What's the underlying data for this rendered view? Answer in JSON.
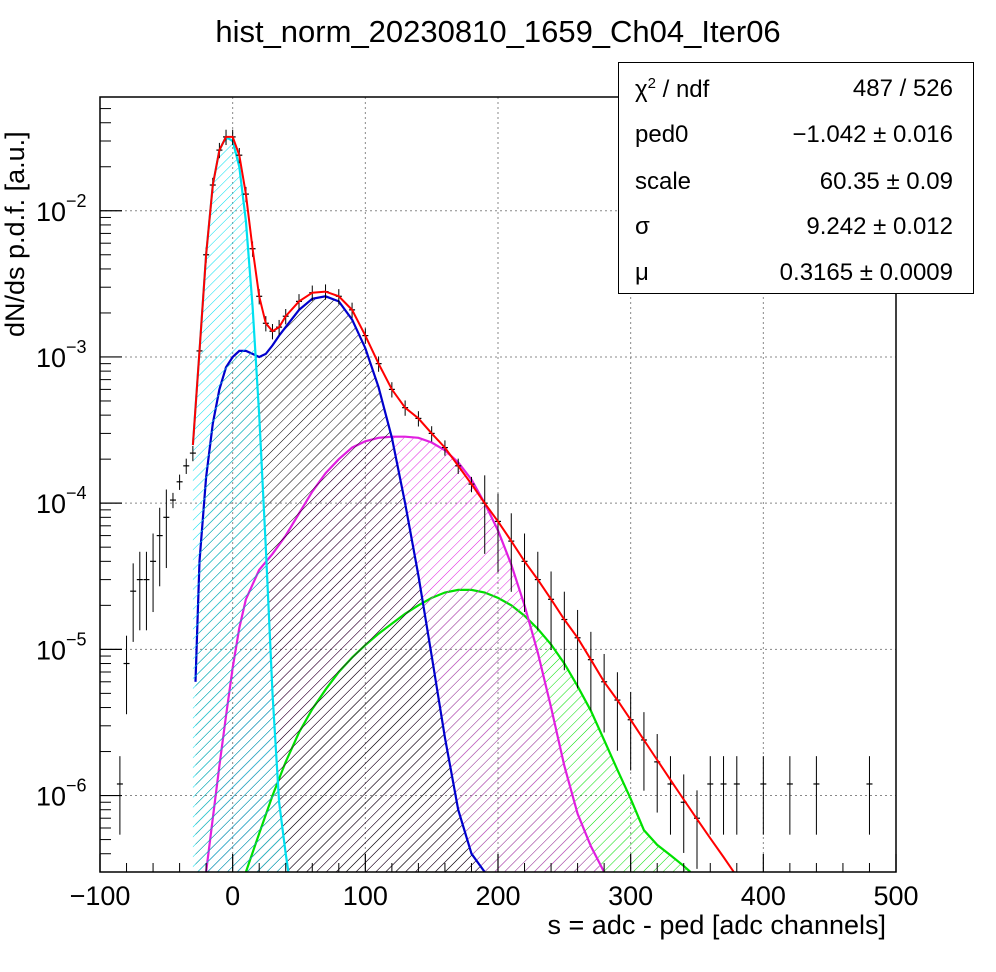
{
  "chart_data": {
    "type": "line",
    "title": "hist_norm_20230810_1659_Ch04_Iter06",
    "xlabel": "s = adc - ped [adc channels]",
    "ylabel": "dN/ds p.d.f. [a.u.]",
    "xlim": [
      -100,
      500
    ],
    "ylim": [
      3e-07,
      0.06
    ],
    "yscale": "log",
    "grid": true,
    "x_ticks": [
      -100,
      0,
      100,
      200,
      300,
      400,
      500
    ],
    "x_tick_labels": [
      "−100",
      "0",
      "100",
      "200",
      "300",
      "400",
      "500"
    ],
    "y_ticks": [
      1e-06,
      1e-05,
      0.0001,
      0.001,
      0.01
    ],
    "y_tick_labels": [
      {
        "base": "10",
        "exp": "−6"
      },
      {
        "base": "10",
        "exp": "−5"
      },
      {
        "base": "10",
        "exp": "−4"
      },
      {
        "base": "10",
        "exp": "−3"
      },
      {
        "base": "10",
        "exp": "−2"
      }
    ],
    "series": [
      {
        "color": "#000000",
        "style": "histogram-errorbars",
        "x": [
          -85,
          -80,
          -75,
          -70,
          -65,
          -60,
          -55,
          -50,
          -45,
          -40,
          -35,
          -30,
          -25,
          -20,
          -15,
          -10,
          -5,
          0,
          5,
          10,
          15,
          20,
          25,
          30,
          35,
          40,
          50,
          60,
          70,
          80,
          90,
          100,
          110,
          120,
          130,
          140,
          150,
          160,
          170,
          180,
          190,
          200,
          210,
          220,
          230,
          240,
          250,
          260,
          270,
          280,
          290,
          300,
          310,
          320,
          330,
          340,
          350,
          360,
          370,
          380,
          400,
          420,
          440,
          480
        ],
        "y": [
          1.2e-06,
          8e-06,
          2.5e-05,
          3e-05,
          3e-05,
          4e-05,
          6e-05,
          8e-05,
          0.000105,
          0.00014,
          0.00018,
          0.00022,
          0.0011,
          0.005,
          0.015,
          0.026,
          0.032,
          0.032,
          0.024,
          0.013,
          0.0055,
          0.0026,
          0.0017,
          0.0015,
          0.0016,
          0.0019,
          0.0024,
          0.00275,
          0.0028,
          0.0026,
          0.0021,
          0.0014,
          0.0009,
          0.0006,
          0.00045,
          0.00038,
          0.0003,
          0.00024,
          0.00018,
          0.000135,
          0.0001,
          7.5e-05,
          5.5e-05,
          4e-05,
          3e-05,
          2.2e-05,
          1.6e-05,
          1.2e-05,
          8.5e-06,
          6e-06,
          4.5e-06,
          3.3e-06,
          2.4e-06,
          1.7e-06,
          1.2e-06,
          9e-07,
          7e-07,
          1.2e-06,
          1.2e-06,
          1.2e-06,
          1.2e-06,
          1.2e-06,
          1.2e-06,
          1.2e-06
        ]
      },
      {
        "color": "#ff0000",
        "style": "line",
        "x": [
          -30,
          -25,
          -20,
          -15,
          -10,
          -5,
          0,
          5,
          10,
          15,
          20,
          25,
          30,
          35,
          40,
          50,
          60,
          70,
          80,
          90,
          100,
          110,
          120,
          130,
          140,
          150,
          160,
          170,
          180,
          190,
          200,
          210,
          220,
          230,
          240,
          250,
          260,
          270,
          280,
          290,
          300,
          310,
          320,
          330,
          340,
          350,
          360,
          370,
          380
        ],
        "y": [
          0.00025,
          0.0011,
          0.005,
          0.015,
          0.026,
          0.032,
          0.032,
          0.024,
          0.013,
          0.0055,
          0.0026,
          0.0017,
          0.0015,
          0.0016,
          0.0019,
          0.0024,
          0.00275,
          0.0028,
          0.0026,
          0.0021,
          0.0014,
          0.0009,
          0.0006,
          0.00045,
          0.00038,
          0.0003,
          0.00024,
          0.00018,
          0.000135,
          0.0001,
          7.5e-05,
          5.5e-05,
          4e-05,
          3e-05,
          2.2e-05,
          1.6e-05,
          1.2e-05,
          8.5e-06,
          6e-06,
          4.5e-06,
          3.3e-06,
          2.4e-06,
          1.75e-06,
          1.28e-06,
          9.4e-07,
          6.9e-07,
          5.1e-07,
          3.8e-07,
          2.8e-07
        ]
      },
      {
        "color": "#00e0f0",
        "style": "hatched-fill",
        "x": [
          -30,
          -25,
          -20,
          -15,
          -10,
          -5,
          0,
          5,
          10,
          15,
          20,
          25,
          30,
          35,
          40,
          42
        ],
        "y": [
          0.00025,
          0.0011,
          0.005,
          0.015,
          0.026,
          0.032,
          0.03,
          0.02,
          0.0085,
          0.0022,
          0.0004,
          5e-05,
          5e-06,
          9e-07,
          4e-07,
          3e-07
        ]
      },
      {
        "color": "#0000cc",
        "style": "hatched-fill",
        "x": [
          -28,
          -25,
          -20,
          -15,
          -10,
          -5,
          0,
          5,
          10,
          15,
          20,
          25,
          30,
          35,
          40,
          50,
          60,
          70,
          80,
          90,
          100,
          110,
          120,
          130,
          140,
          150,
          160,
          170,
          180,
          190
        ],
        "y": [
          6e-06,
          4e-05,
          0.00015,
          0.00035,
          0.0006,
          0.00085,
          0.001,
          0.0011,
          0.0011,
          0.00105,
          0.001,
          0.00105,
          0.0012,
          0.0014,
          0.0016,
          0.0021,
          0.0025,
          0.0026,
          0.0024,
          0.0018,
          0.00115,
          0.00062,
          0.00028,
          0.0001,
          3.2e-05,
          9e-06,
          2.5e-06,
          8e-07,
          4e-07,
          3e-07
        ]
      },
      {
        "color": "#e020e0",
        "style": "hatched-fill",
        "x": [
          -20,
          -15,
          -10,
          -5,
          0,
          5,
          10,
          20,
          30,
          40,
          50,
          60,
          70,
          80,
          90,
          100,
          110,
          120,
          130,
          140,
          150,
          160,
          170,
          180,
          190,
          200,
          210,
          220,
          230,
          240,
          250,
          260,
          270,
          280
        ],
        "y": [
          3e-07,
          7e-07,
          1.6e-06,
          3.5e-06,
          7.5e-06,
          1.4e-05,
          2.2e-05,
          3.5e-05,
          4.5e-05,
          6e-05,
          8.5e-05,
          0.00012,
          0.00016,
          0.0002,
          0.00024,
          0.000265,
          0.00028,
          0.000285,
          0.000285,
          0.00028,
          0.00026,
          0.00023,
          0.00019,
          0.000145,
          0.0001,
          6.5e-05,
          3.8e-05,
          2e-05,
          9.5e-06,
          4e-06,
          1.6e-06,
          7.5e-07,
          4.5e-07,
          3e-07
        ]
      },
      {
        "color": "#00e000",
        "style": "hatched-fill",
        "x": [
          10,
          20,
          30,
          40,
          50,
          60,
          70,
          80,
          90,
          100,
          110,
          120,
          130,
          140,
          150,
          160,
          170,
          180,
          190,
          200,
          210,
          220,
          230,
          240,
          250,
          260,
          270,
          280,
          290,
          300,
          310,
          320,
          330,
          340,
          345
        ],
        "y": [
          3e-07,
          5.5e-07,
          1e-06,
          1.7e-06,
          2.7e-06,
          3.9e-06,
          5.3e-06,
          7e-06,
          8.8e-06,
          1.07e-05,
          1.28e-05,
          1.5e-05,
          1.75e-05,
          2e-05,
          2.25e-05,
          2.45e-05,
          2.55e-05,
          2.55e-05,
          2.45e-05,
          2.25e-05,
          2e-05,
          1.7e-05,
          1.38e-05,
          1.08e-05,
          8e-06,
          5.6e-06,
          3.8e-06,
          2.4e-06,
          1.5e-06,
          9.5e-07,
          5.8e-07,
          4.6e-07,
          3.9e-07,
          3.3e-07,
          3e-07
        ]
      }
    ]
  },
  "stats": [
    {
      "name": "χ",
      "sup": "2",
      "name_rest": " / ndf",
      "value": "487 / 526"
    },
    {
      "name": "ped0",
      "value": "−1.042 ± 0.016"
    },
    {
      "name": "scale",
      "value": "60.35 ± 0.09"
    },
    {
      "name": "σ",
      "value": "9.242 ± 0.012"
    },
    {
      "name": "μ",
      "value": "0.3165 ± 0.0009"
    }
  ]
}
